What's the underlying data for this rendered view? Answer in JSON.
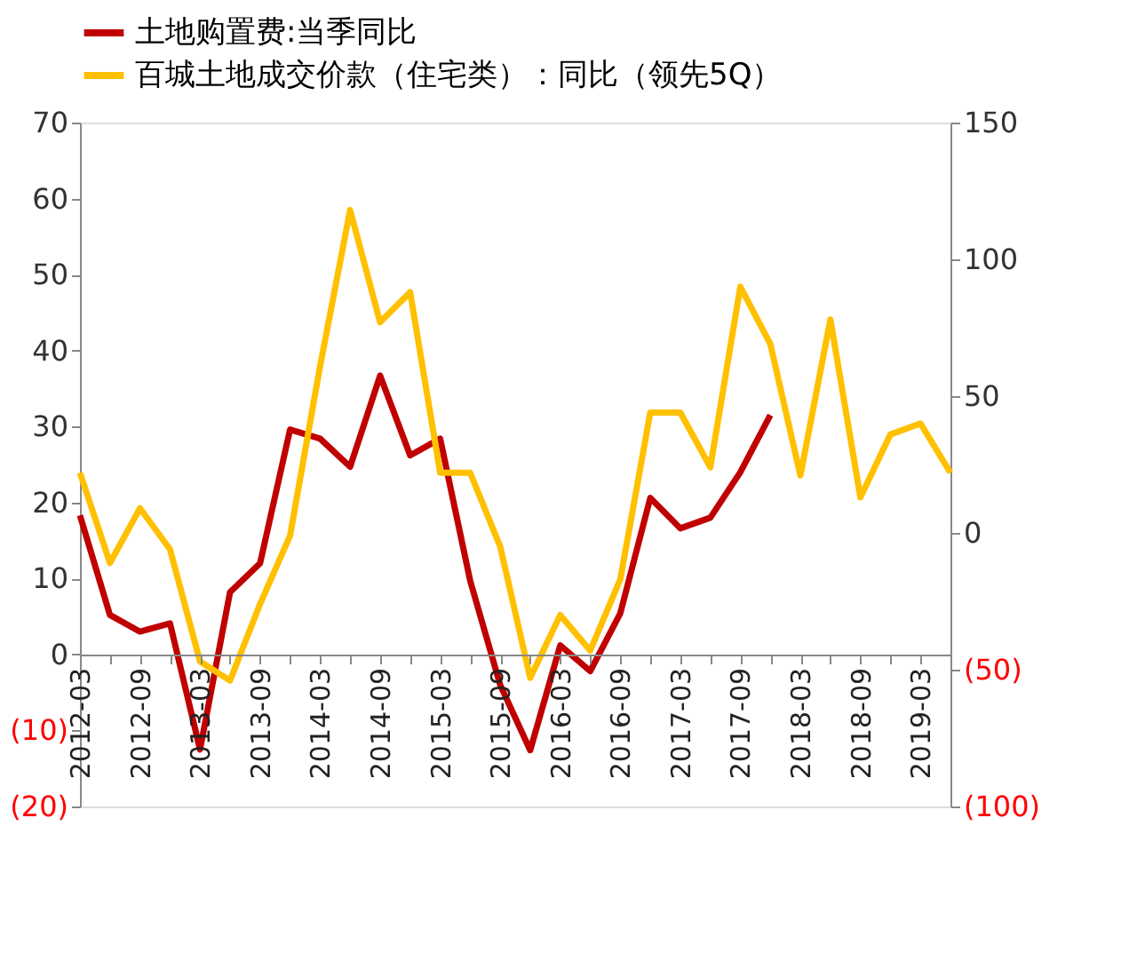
{
  "chart_data": {
    "type": "line",
    "categories": [
      "2012-03",
      null,
      "2012-09",
      null,
      "2013-03",
      null,
      "2013-09",
      null,
      "2014-03",
      null,
      "2014-09",
      null,
      "2015-03",
      null,
      "2015-09",
      null,
      "2016-03",
      null,
      "2016-09",
      null,
      "2017-03",
      null,
      "2017-09",
      null,
      "2018-03",
      null,
      "2018-09",
      null,
      "2019-03",
      null
    ],
    "series": [
      {
        "name": "土地购置费:当季同比",
        "color": "#c00000",
        "values": [
          18.3,
          5.2,
          3.0,
          4.1,
          -12.5,
          8.2,
          12.0,
          29.6,
          28.4,
          24.7,
          36.7,
          26.2,
          28.4,
          9.7,
          -4.0,
          -12.6,
          1.2,
          -2.2,
          5.4,
          20.6,
          16.6,
          18.0,
          24.0,
          31.5,
          null,
          null,
          null,
          null,
          null,
          null
        ]
      },
      {
        "name": "百城土地成交价款（住宅类）：同比（领先5Q）",
        "color": "#ffc000",
        "axis": "y2",
        "values": [
          22,
          -11,
          9,
          -6,
          -47,
          -54,
          -26,
          -1,
          61,
          118,
          77,
          88,
          22,
          22,
          -5,
          -53,
          -30,
          -43,
          -17,
          44,
          44,
          24,
          90,
          69,
          21,
          78,
          13,
          36,
          40,
          22
        ]
      }
    ],
    "ylim": [
      -20,
      70
    ],
    "yticks": [
      {
        "value": -20,
        "label": "(20)"
      },
      {
        "value": -10,
        "label": "(10)"
      },
      0,
      10,
      20,
      30,
      40,
      50,
      60,
      70
    ],
    "y2lim": [
      -100,
      150
    ],
    "y2ticks": [
      {
        "value": -100,
        "label": "(100)"
      },
      {
        "value": -50,
        "label": "(50)"
      },
      0,
      50,
      100,
      150
    ],
    "grid": false,
    "legend": "top left",
    "line_style": "solid",
    "marker": "none"
  }
}
